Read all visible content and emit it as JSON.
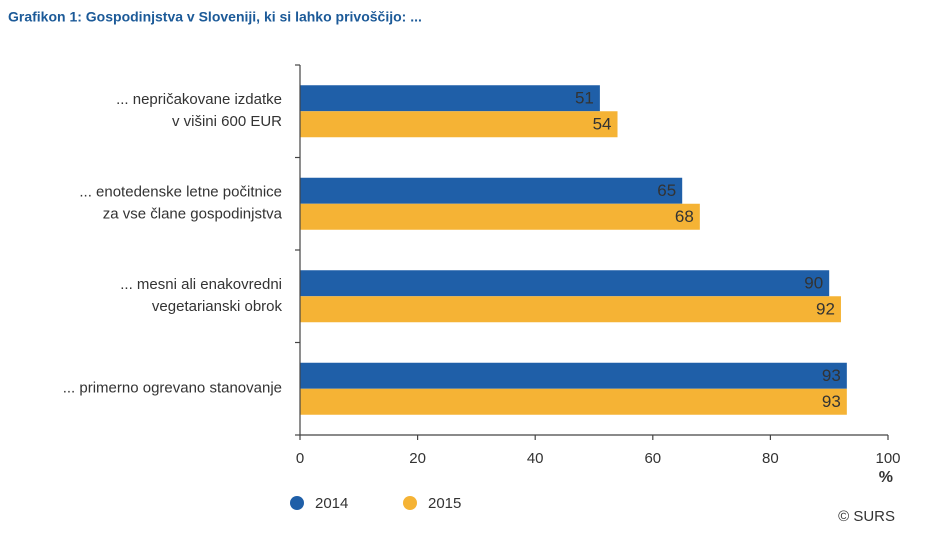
{
  "chart_data": {
    "type": "hbar",
    "title": "Grafikon 1: Gospodinjstva v Sloveniji, ki si lahko privoščijo: ...",
    "categories": [
      [
        "... nepričakovane izdatke",
        "v višini 600 EUR"
      ],
      [
        "... enotedenske letne počitnice",
        "za vse člane gospodinjstva"
      ],
      [
        "... mesni ali enakovredni",
        "vegetarianski obrok"
      ],
      [
        "... primerno ogrevano stanovanje"
      ]
    ],
    "series": [
      {
        "name": "2014",
        "color": "#1f5fa8",
        "values": [
          51,
          65,
          90,
          93
        ]
      },
      {
        "name": "2015",
        "color": "#f5b335",
        "values": [
          54,
          68,
          92,
          93
        ]
      }
    ],
    "xlim": [
      0,
      100
    ],
    "xticks": [
      0,
      20,
      40,
      60,
      80,
      100
    ],
    "x_unit": "%",
    "source": "© SURS",
    "legend": "bottom-left"
  }
}
